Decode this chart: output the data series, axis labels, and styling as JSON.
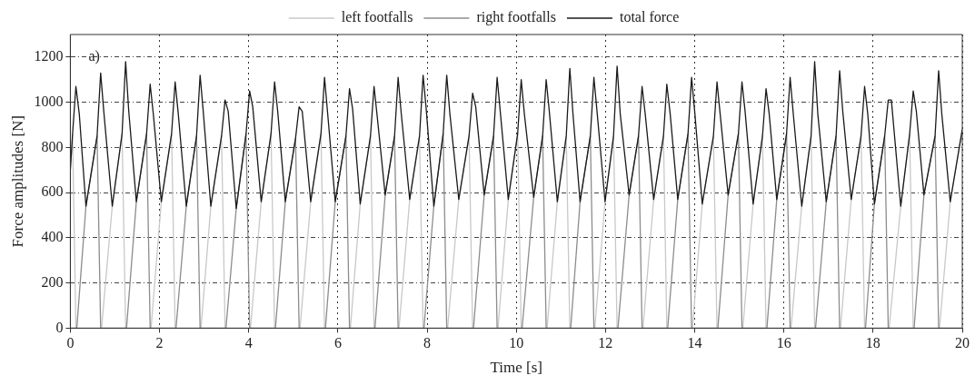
{
  "chart_data": {
    "type": "line",
    "xlabel": "Time [s]",
    "ylabel": "Force amplitudes [N]",
    "annotations": [
      "a)"
    ],
    "xlim": [
      0,
      20
    ],
    "xticks": [
      0,
      2,
      4,
      6,
      8,
      10,
      12,
      14,
      16,
      18,
      20
    ],
    "ylim": [
      0,
      1300
    ],
    "yticks": [
      0,
      200,
      400,
      600,
      800,
      1000,
      1200
    ],
    "grid": true,
    "legend": "top",
    "marker": "none",
    "line_style": "solid",
    "series": [
      {
        "name": "left footfalls",
        "color": "#c8c8c8",
        "x": [
          0,
          0.05,
          0.125,
          0.7,
          0.94,
          1.16,
          1.24,
          1.81,
          2.04,
          2.27,
          2.35,
          2.93,
          3.15,
          3.39,
          3.47,
          4.04,
          4.28,
          4.5,
          4.58,
          5.15,
          5.39,
          5.62,
          5.7,
          6.28,
          6.5,
          6.73,
          6.81,
          7.37,
          7.61,
          7.83,
          7.91,
          8.46,
          8.71,
          8.94,
          9.02,
          9.59,
          9.82,
          10.03,
          10.11,
          10.69,
          10.92,
          11.12,
          11.2,
          11.76,
          11.99,
          12.18,
          12.26,
          12.84,
          13.08,
          13.3,
          13.375,
          13.95,
          14.17,
          14.42,
          14.5,
          15.08,
          15.31,
          15.52,
          15.6,
          16.16,
          16.4,
          16.61,
          16.69,
          17.27,
          17.51,
          17.73,
          17.81,
          18.36,
          18.62,
          18.82,
          18.9,
          19.49,
          19.73,
          20
        ],
        "values": [
          700,
          860,
          0,
          0,
          540,
          860,
          0,
          0,
          560,
          860,
          0,
          0,
          540,
          850,
          0,
          0,
          560,
          860,
          0,
          0,
          560,
          860,
          0,
          0,
          550,
          850,
          0,
          0,
          570,
          850,
          0,
          0,
          570,
          850,
          0,
          0,
          570,
          860,
          0,
          0,
          560,
          850,
          0,
          0,
          560,
          850,
          0,
          0,
          570,
          850,
          0,
          0,
          550,
          850,
          0,
          0,
          550,
          850,
          0,
          0,
          540,
          850,
          0,
          0,
          570,
          850,
          0,
          0,
          540,
          860,
          0,
          0,
          560,
          880
        ]
      },
      {
        "name": "right footfalls",
        "color": "#8c8c8c",
        "x": [
          0,
          0.145,
          0.35,
          0.6,
          0.68,
          1.26,
          1.48,
          1.71,
          1.79,
          2.37,
          2.6,
          2.83,
          2.91,
          3.49,
          3.72,
          3.94,
          4.02,
          4.6,
          4.82,
          5.05,
          5.13,
          5.72,
          5.94,
          6.18,
          6.26,
          6.83,
          7.06,
          7.27,
          7.35,
          7.93,
          8.15,
          8.36,
          8.44,
          9.04,
          9.28,
          9.49,
          9.57,
          10.13,
          10.39,
          10.59,
          10.67,
          11.22,
          11.43,
          11.66,
          11.74,
          12.28,
          12.53,
          12.74,
          12.82,
          13.395,
          13.62,
          13.85,
          13.93,
          14.52,
          14.75,
          14.98,
          15.06,
          15.62,
          15.84,
          16.06,
          16.14,
          16.71,
          16.95,
          17.17,
          17.25,
          17.83,
          18.03,
          18.26,
          18.34,
          18.92,
          19.14,
          19.39,
          19.47,
          20
        ],
        "values": [
          0,
          0,
          540,
          850,
          0,
          0,
          560,
          860,
          0,
          0,
          540,
          850,
          0,
          0,
          530,
          860,
          0,
          0,
          560,
          840,
          0,
          0,
          560,
          850,
          0,
          0,
          590,
          850,
          0,
          0,
          540,
          860,
          0,
          0,
          590,
          850,
          0,
          0,
          580,
          850,
          0,
          0,
          560,
          850,
          0,
          0,
          590,
          850,
          0,
          0,
          570,
          860,
          0,
          0,
          590,
          860,
          0,
          0,
          570,
          860,
          0,
          0,
          560,
          850,
          0,
          0,
          550,
          850,
          0,
          0,
          590,
          850,
          0,
          0
        ]
      },
      {
        "name": "total force",
        "color": "#1a1a1a",
        "x": [
          0,
          0.05,
          0.125,
          0.2,
          0.35,
          0.6,
          0.68,
          0.75,
          0.94,
          1.16,
          1.24,
          1.31,
          1.48,
          1.71,
          1.79,
          1.86,
          2.04,
          2.27,
          2.35,
          2.42,
          2.6,
          2.83,
          2.91,
          2.98,
          3.15,
          3.39,
          3.47,
          3.54,
          3.72,
          3.94,
          4.02,
          4.09,
          4.28,
          4.5,
          4.58,
          4.65,
          4.82,
          5.05,
          5.13,
          5.2,
          5.39,
          5.62,
          5.7,
          5.77,
          5.94,
          6.18,
          6.26,
          6.33,
          6.5,
          6.73,
          6.81,
          6.88,
          7.06,
          7.27,
          7.35,
          7.42,
          7.61,
          7.83,
          7.91,
          7.98,
          8.15,
          8.36,
          8.44,
          8.51,
          8.71,
          8.94,
          9.02,
          9.09,
          9.28,
          9.49,
          9.57,
          9.64,
          9.82,
          10.03,
          10.11,
          10.18,
          10.39,
          10.59,
          10.67,
          10.74,
          10.92,
          11.12,
          11.2,
          11.27,
          11.43,
          11.66,
          11.74,
          11.81,
          11.99,
          12.18,
          12.26,
          12.33,
          12.53,
          12.74,
          12.82,
          12.89,
          13.08,
          13.3,
          13.375,
          13.45,
          13.62,
          13.85,
          13.93,
          14.0,
          14.17,
          14.42,
          14.5,
          14.57,
          14.75,
          14.98,
          15.06,
          15.13,
          15.31,
          15.52,
          15.6,
          15.67,
          15.84,
          16.06,
          16.14,
          16.21,
          16.4,
          16.61,
          16.69,
          16.76,
          16.95,
          17.17,
          17.25,
          17.32,
          17.51,
          17.73,
          17.81,
          17.88,
          18.03,
          18.26,
          18.34,
          18.41,
          18.62,
          18.82,
          18.9,
          18.97,
          19.14,
          19.39,
          19.47,
          19.54,
          19.73,
          20
        ],
        "values": [
          700,
          860,
          1070,
          950,
          540,
          850,
          1130,
          960,
          540,
          860,
          1180,
          960,
          560,
          860,
          1080,
          950,
          560,
          860,
          1090,
          950,
          540,
          850,
          1120,
          960,
          540,
          850,
          1010,
          960,
          530,
          860,
          1050,
          980,
          560,
          860,
          1090,
          960,
          560,
          840,
          980,
          960,
          560,
          860,
          1110,
          950,
          560,
          850,
          1060,
          970,
          550,
          850,
          1070,
          940,
          590,
          850,
          1110,
          950,
          570,
          850,
          1120,
          970,
          540,
          860,
          1120,
          950,
          570,
          850,
          1040,
          980,
          590,
          850,
          1110,
          960,
          570,
          860,
          1100,
          950,
          580,
          850,
          1100,
          960,
          560,
          850,
          1150,
          950,
          560,
          850,
          1110,
          960,
          560,
          850,
          1160,
          950,
          590,
          850,
          1070,
          950,
          570,
          850,
          1080,
          950,
          570,
          860,
          1110,
          960,
          550,
          850,
          1090,
          950,
          590,
          860,
          1090,
          960,
          550,
          850,
          1060,
          950,
          570,
          860,
          1110,
          950,
          540,
          850,
          1180,
          950,
          560,
          850,
          1140,
          960,
          570,
          850,
          1070,
          950,
          550,
          850,
          1010,
          1010,
          540,
          860,
          1050,
          960,
          590,
          850,
          1140,
          950,
          560,
          880
        ]
      }
    ]
  }
}
